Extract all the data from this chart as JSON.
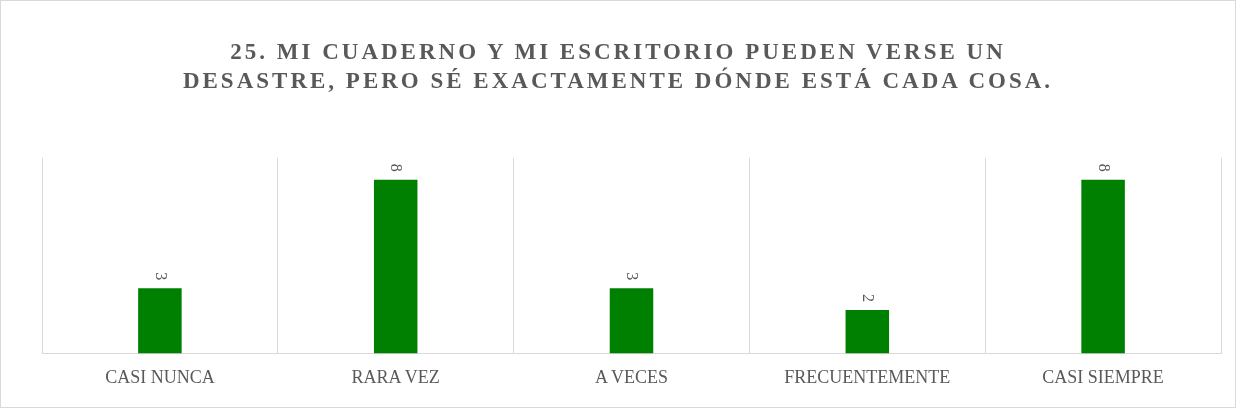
{
  "chart_data": {
    "type": "bar",
    "title": "25. MI CUADERNO Y MI ESCRITORIO PUEDEN VERSE UN DESASTRE, PERO SÉ EXACTAMENTE DÓNDE ESTÁ CADA COSA.",
    "categories": [
      "CASI NUNCA",
      "RARA VEZ",
      "A VECES",
      "FRECUENTEMENTE",
      "CASI SIEMPRE"
    ],
    "values": [
      3,
      8,
      3,
      2,
      8
    ],
    "color": "#008000",
    "data_labels": true,
    "grid": "x",
    "legend": false,
    "tick_labels": "x"
  }
}
